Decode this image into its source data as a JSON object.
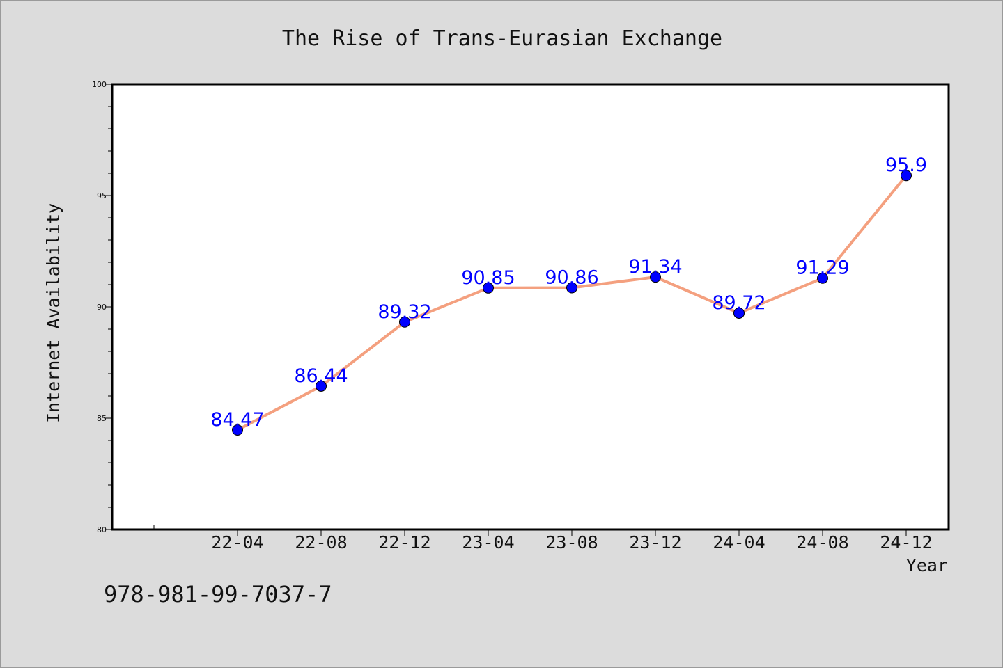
{
  "chart_data": {
    "type": "line",
    "title": "The Rise of Trans-Eurasian Exchange",
    "xlabel": "Year",
    "ylabel": "Internet Availability",
    "categories": [
      "22-04",
      "22-08",
      "22-12",
      "23-04",
      "23-08",
      "23-12",
      "24-04",
      "24-08",
      "24-12"
    ],
    "series": [
      {
        "values": [
          84.47,
          86.44,
          89.32,
          90.85,
          90.86,
          91.34,
          89.72,
          91.29,
          95.9
        ],
        "labels": [
          "84.47",
          "86.44",
          "89.32",
          "90.85",
          "90.86",
          "91.34",
          "89.72",
          "91.29",
          "95.9"
        ],
        "line_color": "#f4a07f",
        "marker_color": "#0000ff"
      }
    ],
    "ylim": [
      80,
      100
    ],
    "yticks": [
      80,
      85,
      90,
      95,
      100
    ],
    "ytick_labels": [
      "80",
      "85",
      "90",
      "95",
      "100"
    ],
    "grid": false,
    "label_color": "#0000ff"
  },
  "footer": {
    "code": "978-981-99-7037-7"
  }
}
